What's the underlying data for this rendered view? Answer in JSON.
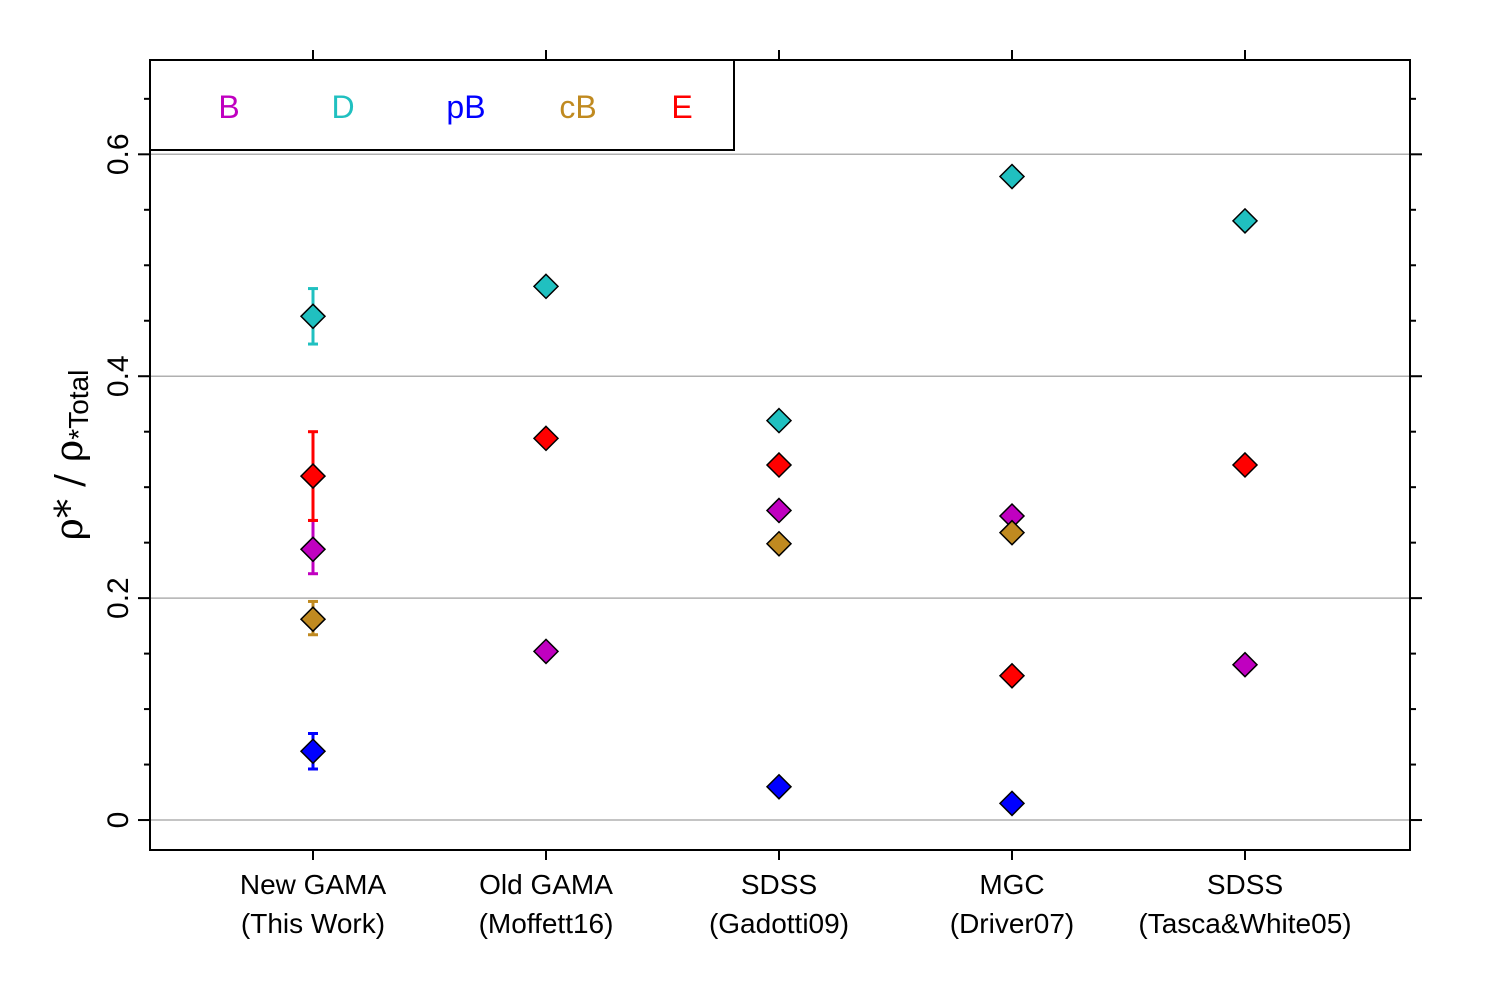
{
  "chart_data": {
    "type": "scatter",
    "ylabel": {
      "main": "ρ* / ρ",
      "sub": "*Total"
    },
    "ylim": [
      -0.027,
      0.685
    ],
    "yticks": [
      {
        "value": 0,
        "label": "0"
      },
      {
        "value": 0.2,
        "label": "0.2"
      },
      {
        "value": 0.4,
        "label": "0.4"
      },
      {
        "value": 0.6,
        "label": "0.6"
      }
    ],
    "minor_yticks": [
      0.05,
      0.1,
      0.15,
      0.25,
      0.3,
      0.35,
      0.45,
      0.5,
      0.55,
      0.65
    ],
    "gridlines": [
      0,
      0.2,
      0.4,
      0.6
    ],
    "categories": [
      {
        "line1": "New GAMA",
        "line2": "(This Work)"
      },
      {
        "line1": "Old GAMA",
        "line2": "(Moffett16)"
      },
      {
        "line1": "SDSS",
        "line2": "(Gadotti09)"
      },
      {
        "line1": "MGC",
        "line2": "(Driver07)"
      },
      {
        "line1": "SDSS",
        "line2": "(Tasca&White05)"
      }
    ],
    "legend": {
      "position": "top-left"
    },
    "series": [
      {
        "name": "B",
        "color": "#c000c0",
        "values": [
          0.244,
          0.152,
          0.279,
          0.274,
          0.14
        ],
        "err_lo": [
          0.022,
          null,
          null,
          null,
          null
        ],
        "err_hi": [
          0.026,
          null,
          null,
          null,
          null
        ]
      },
      {
        "name": "D",
        "color": "#20c0c0",
        "values": [
          0.454,
          0.481,
          0.36,
          0.58,
          0.54
        ],
        "err_lo": [
          0.025,
          null,
          null,
          null,
          null
        ],
        "err_hi": [
          0.025,
          null,
          null,
          null,
          null
        ]
      },
      {
        "name": "pB",
        "color": "#0000ff",
        "values": [
          0.062,
          null,
          0.03,
          0.015,
          null
        ],
        "err_lo": [
          0.016,
          null,
          null,
          null,
          null
        ],
        "err_hi": [
          0.016,
          null,
          null,
          null,
          null
        ]
      },
      {
        "name": "cB",
        "color": "#c08a20",
        "values": [
          0.181,
          null,
          0.249,
          0.259,
          null
        ],
        "err_lo": [
          0.014,
          null,
          null,
          null,
          null
        ],
        "err_hi": [
          0.016,
          null,
          null,
          null,
          null
        ]
      },
      {
        "name": "E",
        "color": "#ff0000",
        "values": [
          0.31,
          0.344,
          0.32,
          0.13,
          0.32
        ],
        "err_lo": [
          0.04,
          null,
          null,
          null,
          null
        ],
        "err_hi": [
          0.04,
          null,
          null,
          null,
          null
        ]
      }
    ]
  }
}
